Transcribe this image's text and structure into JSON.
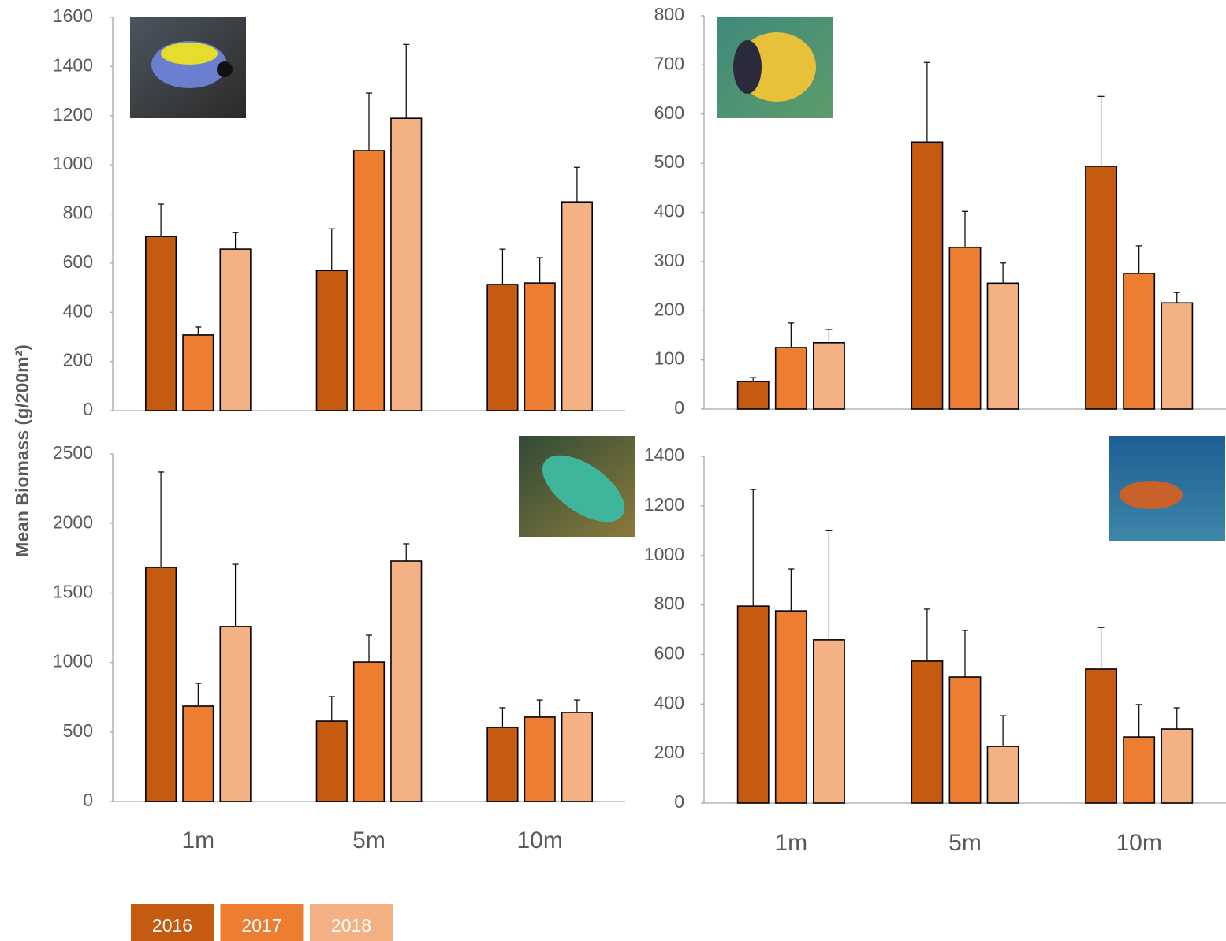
{
  "y_label": "Mean Biomass (g/200m²)",
  "chart_data": [
    {
      "type": "bar",
      "categories": [
        null,
        null,
        null
      ],
      "ylim": [
        0,
        1600
      ],
      "yticks": [
        0,
        200,
        400,
        600,
        800,
        1000,
        1200,
        1400,
        1600
      ],
      "series": [
        {
          "name": "2016",
          "color": "#c55a11",
          "values": [
            708,
            570,
            513
          ],
          "errors": [
            132,
            170,
            144
          ]
        },
        {
          "name": "2017",
          "color": "#ed7d31",
          "values": [
            308,
            1058,
            519
          ],
          "errors": [
            32,
            234,
            103
          ]
        },
        {
          "name": "2018",
          "color": "#f4b183",
          "values": [
            657,
            1189,
            849
          ],
          "errors": [
            67,
            301,
            141
          ]
        }
      ]
    },
    {
      "type": "bar",
      "categories": [
        null,
        null,
        null
      ],
      "ylim": [
        0,
        800
      ],
      "yticks": [
        0,
        100,
        200,
        300,
        400,
        500,
        600,
        700,
        800
      ],
      "series": [
        {
          "name": "2016",
          "color": "#c55a11",
          "values": [
            56,
            543,
            494
          ],
          "errors": [
            8,
            162,
            142
          ]
        },
        {
          "name": "2017",
          "color": "#ed7d31",
          "values": [
            125,
            329,
            276
          ],
          "errors": [
            50,
            73,
            56
          ]
        },
        {
          "name": "2018",
          "color": "#f4b183",
          "values": [
            135,
            256,
            216
          ],
          "errors": [
            27,
            41,
            21
          ]
        }
      ]
    },
    {
      "type": "bar",
      "categories": [
        "1m",
        "5m",
        "10m"
      ],
      "ylim": [
        0,
        2500
      ],
      "yticks": [
        0,
        500,
        1000,
        1500,
        2000,
        2500
      ],
      "series": [
        {
          "name": "2016",
          "color": "#c55a11",
          "values": [
            1684,
            578,
            533
          ],
          "errors": [
            686,
            176,
            142
          ]
        },
        {
          "name": "2017",
          "color": "#ed7d31",
          "values": [
            686,
            1003,
            607
          ],
          "errors": [
            164,
            193,
            124
          ]
        },
        {
          "name": "2018",
          "color": "#f4b183",
          "values": [
            1259,
            1729,
            641
          ],
          "errors": [
            447,
            125,
            90
          ]
        }
      ]
    },
    {
      "type": "bar",
      "categories": [
        "1m",
        "5m",
        "10m"
      ],
      "ylim": [
        0,
        1400
      ],
      "yticks": [
        0,
        200,
        400,
        600,
        800,
        1000,
        1200,
        1400
      ],
      "series": [
        {
          "name": "2016",
          "color": "#c55a11",
          "values": [
            795,
            573,
            541
          ],
          "errors": [
            471,
            210,
            168
          ]
        },
        {
          "name": "2017",
          "color": "#ed7d31",
          "values": [
            776,
            509,
            267
          ],
          "errors": [
            169,
            188,
            131
          ]
        },
        {
          "name": "2018",
          "color": "#f4b183",
          "values": [
            659,
            229,
            299
          ],
          "errors": [
            441,
            124,
            86
          ]
        }
      ]
    }
  ]
}
